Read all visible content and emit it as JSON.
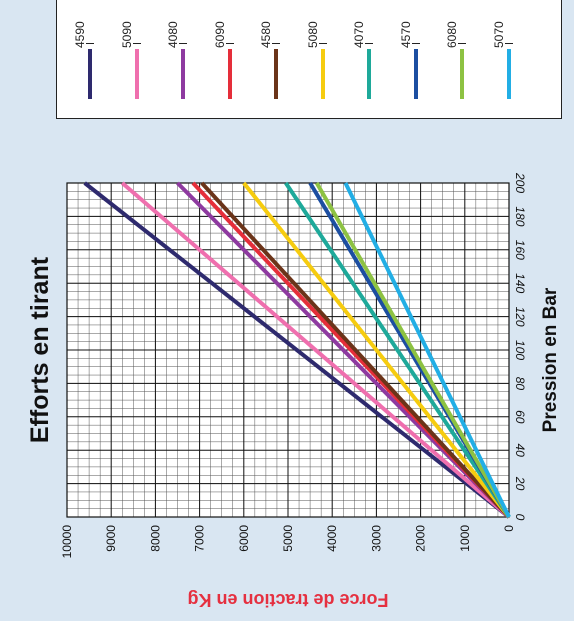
{
  "chart_data": {
    "type": "line",
    "title": "Efforts en tirant",
    "xlabel": "Pression en Bar",
    "ylabel": "Force de traction en Kg",
    "xlim": [
      0,
      200
    ],
    "ylim": [
      0,
      10000
    ],
    "x_ticks": [
      "0",
      "20",
      "40",
      "60",
      "80",
      "100",
      "120",
      "140",
      "160",
      "180",
      "200"
    ],
    "y_ticks": [
      "0",
      "1000",
      "2000",
      "3000",
      "4000",
      "5000",
      "6000",
      "7000",
      "8000",
      "9000",
      "10000"
    ],
    "grid": true,
    "legend_position": "top",
    "series": [
      {
        "name": "4590",
        "color": "#2e2a6e",
        "x": [
          0,
          200
        ],
        "y": [
          0,
          9600
        ]
      },
      {
        "name": "5090",
        "color": "#ef6fae",
        "x": [
          0,
          200
        ],
        "y": [
          0,
          8750
        ]
      },
      {
        "name": "4080",
        "color": "#8e3aa0",
        "x": [
          0,
          200
        ],
        "y": [
          0,
          7500
        ]
      },
      {
        "name": "6090",
        "color": "#e52e3a",
        "x": [
          0,
          200
        ],
        "y": [
          0,
          7150
        ]
      },
      {
        "name": "4580",
        "color": "#6b3419",
        "x": [
          0,
          200
        ],
        "y": [
          0,
          6950
        ]
      },
      {
        "name": "5080",
        "color": "#f6cc0f",
        "x": [
          0,
          200
        ],
        "y": [
          0,
          6000
        ]
      },
      {
        "name": "4070",
        "color": "#1ea99a",
        "x": [
          0,
          200
        ],
        "y": [
          0,
          5050
        ]
      },
      {
        "name": "4570",
        "color": "#1c4ea1",
        "x": [
          0,
          200
        ],
        "y": [
          0,
          4500
        ]
      },
      {
        "name": "6080",
        "color": "#8dc242",
        "x": [
          0,
          200
        ],
        "y": [
          0,
          4350
        ]
      },
      {
        "name": "5070",
        "color": "#22aee5",
        "x": [
          0,
          200
        ],
        "y": [
          0,
          3700
        ]
      }
    ]
  }
}
